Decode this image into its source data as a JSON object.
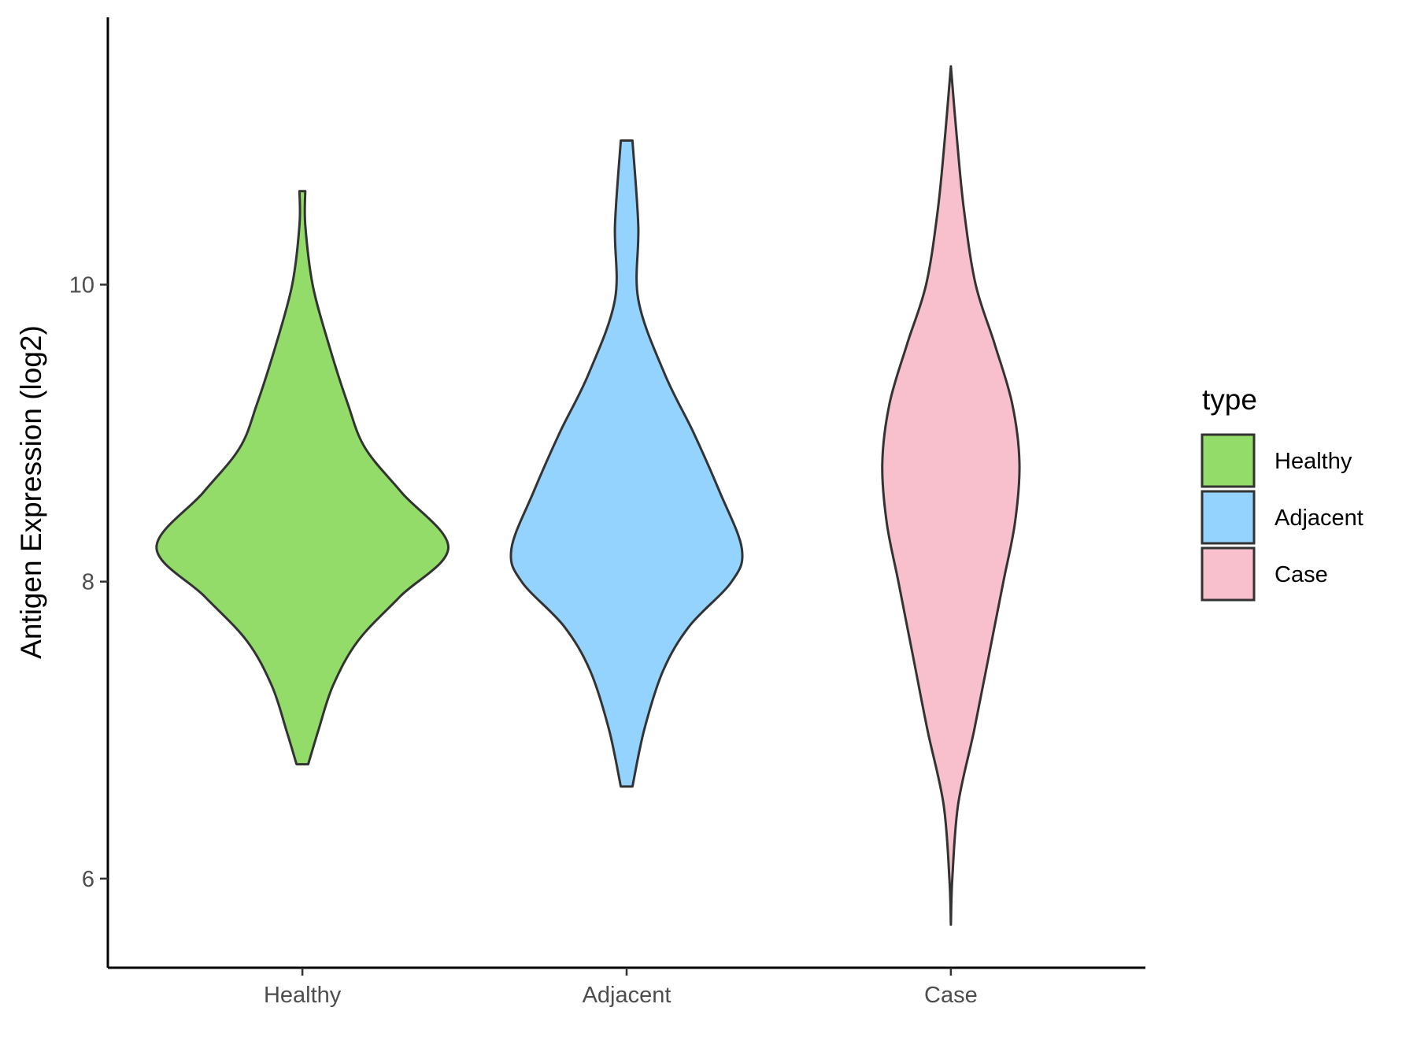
{
  "chart_data": {
    "type": "violin",
    "title": "",
    "xlabel": "",
    "ylabel": "Antigen Expression (log2)",
    "ylim": [
      5.4,
      11.8
    ],
    "yticks": [
      6,
      8,
      10
    ],
    "grid": false,
    "categories": [
      "Healthy",
      "Adjacent",
      "Case"
    ],
    "legend": {
      "title": "type",
      "position": "right",
      "entries": [
        "Healthy",
        "Adjacent",
        "Case"
      ]
    },
    "series": [
      {
        "name": "Healthy",
        "color": "#93dc6a",
        "min": 6.77,
        "max": 10.63,
        "median_approx": 8.23,
        "density_profile": [
          [
            6.77,
            0.04
          ],
          [
            7.0,
            0.11
          ],
          [
            7.3,
            0.21
          ],
          [
            7.6,
            0.38
          ],
          [
            7.9,
            0.67
          ],
          [
            8.23,
            1.0
          ],
          [
            8.6,
            0.68
          ],
          [
            8.9,
            0.43
          ],
          [
            9.2,
            0.31
          ],
          [
            9.6,
            0.18
          ],
          [
            10.0,
            0.07
          ],
          [
            10.4,
            0.02
          ],
          [
            10.63,
            0.02
          ]
        ]
      },
      {
        "name": "Adjacent",
        "color": "#94d3fd",
        "min": 6.62,
        "max": 10.97,
        "median_approx": 8.22,
        "density_profile": [
          [
            6.62,
            0.04
          ],
          [
            7.0,
            0.12
          ],
          [
            7.4,
            0.25
          ],
          [
            7.7,
            0.43
          ],
          [
            8.0,
            0.72
          ],
          [
            8.22,
            0.79
          ],
          [
            8.6,
            0.64
          ],
          [
            9.0,
            0.46
          ],
          [
            9.4,
            0.26
          ],
          [
            9.9,
            0.08
          ],
          [
            10.4,
            0.08
          ],
          [
            10.97,
            0.04
          ]
        ]
      },
      {
        "name": "Case",
        "color": "#f8c0cc",
        "min": 5.69,
        "max": 11.47,
        "median_approx": 8.7,
        "density_profile": [
          [
            5.69,
            0.0
          ],
          [
            6.0,
            0.01
          ],
          [
            6.5,
            0.05
          ],
          [
            7.0,
            0.16
          ],
          [
            7.5,
            0.26
          ],
          [
            8.0,
            0.36
          ],
          [
            8.4,
            0.44
          ],
          [
            8.8,
            0.47
          ],
          [
            9.2,
            0.42
          ],
          [
            9.6,
            0.3
          ],
          [
            10.0,
            0.17
          ],
          [
            10.5,
            0.09
          ],
          [
            11.0,
            0.04
          ],
          [
            11.47,
            0.0
          ]
        ]
      }
    ]
  }
}
